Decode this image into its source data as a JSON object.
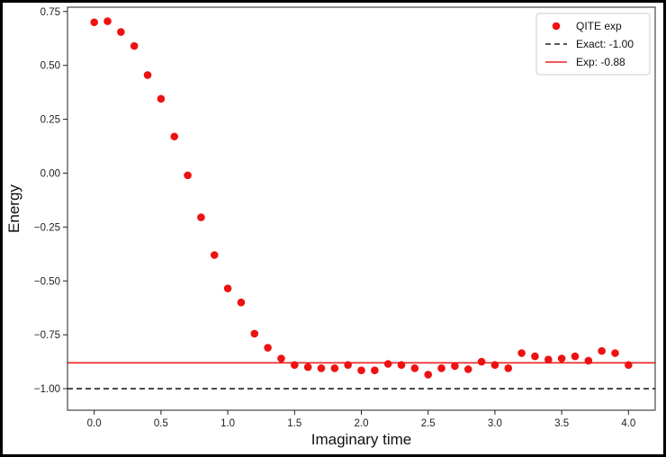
{
  "chart_data": {
    "type": "scatter",
    "title": "",
    "xlabel": "Imaginary time",
    "ylabel": "Energy",
    "xlim": [
      -0.2,
      4.2
    ],
    "ylim": [
      -1.1,
      0.77
    ],
    "xticks": [
      0.0,
      0.5,
      1.0,
      1.5,
      2.0,
      2.5,
      3.0,
      3.5,
      4.0
    ],
    "xtick_labels": [
      "0.0",
      "0.5",
      "1.0",
      "1.5",
      "2.0",
      "2.5",
      "3.0",
      "3.5",
      "4.0"
    ],
    "yticks": [
      0.75,
      0.5,
      0.25,
      0.0,
      -0.25,
      -0.5,
      -0.75,
      -1.0
    ],
    "ytick_labels": [
      "0.75",
      "0.50",
      "0.25",
      "0.00",
      "−0.25",
      "−0.50",
      "−0.75",
      "−1.00"
    ],
    "grid": false,
    "legend_position": "top-right",
    "series": [
      {
        "name": "QITE exp",
        "kind": "scatter",
        "color": "#ee1111",
        "x": [
          0.0,
          0.1,
          0.2,
          0.3,
          0.4,
          0.5,
          0.6,
          0.7,
          0.8,
          0.9,
          1.0,
          1.1,
          1.2,
          1.3,
          1.4,
          1.5,
          1.6,
          1.7,
          1.8,
          1.9,
          2.0,
          2.1,
          2.2,
          2.3,
          2.4,
          2.5,
          2.6,
          2.7,
          2.8,
          2.9,
          3.0,
          3.1,
          3.2,
          3.3,
          3.4,
          3.5,
          3.6,
          3.7,
          3.8,
          3.9,
          4.0
        ],
        "y": [
          0.7,
          0.705,
          0.655,
          0.59,
          0.455,
          0.345,
          0.17,
          -0.01,
          -0.205,
          -0.38,
          -0.535,
          -0.6,
          -0.745,
          -0.81,
          -0.86,
          -0.89,
          -0.9,
          -0.905,
          -0.905,
          -0.89,
          -0.915,
          -0.915,
          -0.885,
          -0.89,
          -0.905,
          -0.935,
          -0.905,
          -0.895,
          -0.91,
          -0.875,
          -0.89,
          -0.905,
          -0.835,
          -0.85,
          -0.865,
          -0.86,
          -0.85,
          -0.87,
          -0.825,
          -0.835,
          -0.89
        ]
      },
      {
        "name": "Exact: -1.00",
        "kind": "hline",
        "y": -1.0,
        "color": "#222222",
        "style": "dashed"
      },
      {
        "name": "Exp: -0.88",
        "kind": "hline",
        "y": -0.88,
        "color": "#ee2222",
        "style": "solid"
      }
    ]
  }
}
